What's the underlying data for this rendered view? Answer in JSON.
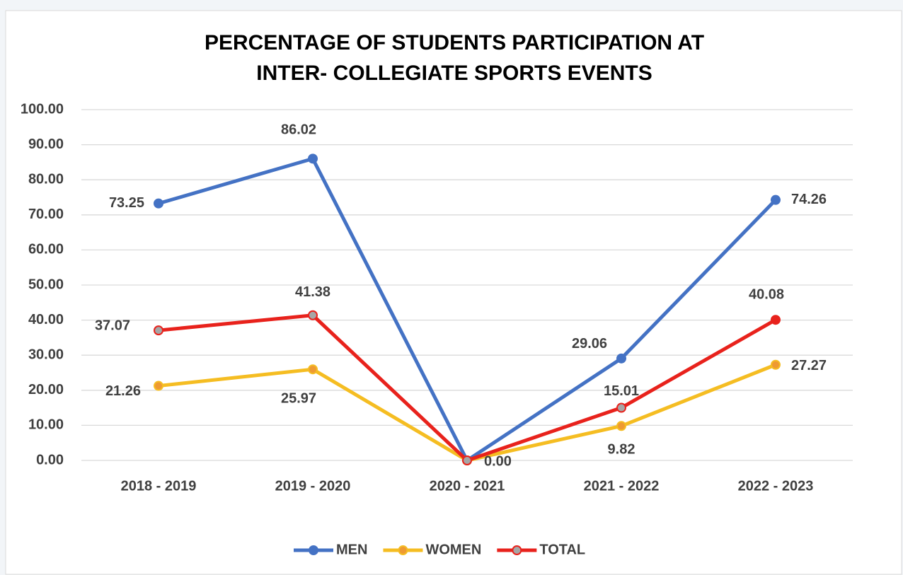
{
  "chart_data": {
    "type": "line",
    "title": [
      "PERCENTAGE OF STUDENTS PARTICIPATION AT",
      "INTER- COLLEGIATE SPORTS EVENTS"
    ],
    "categories": [
      "2018 - 2019",
      "2019 - 2020",
      "2020 - 2021",
      "2021 - 2022",
      "2022 - 2023"
    ],
    "series": [
      {
        "name": "MEN",
        "color": "#4472c4",
        "marker_color": "#4472c4",
        "values": [
          73.25,
          86.02,
          0,
          29.06,
          74.26
        ],
        "value_labels": [
          "73.25",
          "86.02",
          null,
          "29.06",
          "74.26"
        ]
      },
      {
        "name": "WOMEN",
        "color": "#f5bd22",
        "marker_color": "#ee9a32",
        "values": [
          21.26,
          25.97,
          0,
          9.82,
          27.27
        ],
        "value_labels": [
          "21.26",
          "25.97",
          null,
          "9.82",
          "27.27"
        ]
      },
      {
        "name": "TOTAL",
        "color": "#e8221c",
        "marker_color": "#a6a6a6",
        "values": [
          37.07,
          41.38,
          0,
          15.01,
          40.08
        ],
        "value_labels": [
          "37.07",
          "41.38",
          "0.00",
          "15.01",
          "40.08"
        ]
      }
    ],
    "ylim": [
      0,
      100
    ],
    "yticks": [
      {
        "value": 0,
        "label": "0.00"
      },
      {
        "value": 10,
        "label": "10.00"
      },
      {
        "value": 20,
        "label": "20.00"
      },
      {
        "value": 30,
        "label": "30.00"
      },
      {
        "value": 40,
        "label": "40.00"
      },
      {
        "value": 50,
        "label": "50.00"
      },
      {
        "value": 60,
        "label": "60.00"
      },
      {
        "value": 70,
        "label": "70.00"
      },
      {
        "value": 80,
        "label": "80.00"
      },
      {
        "value": 90,
        "label": "90.00"
      },
      {
        "value": 100,
        "label": "100.00"
      }
    ],
    "grid": true,
    "legend": "bottom"
  }
}
